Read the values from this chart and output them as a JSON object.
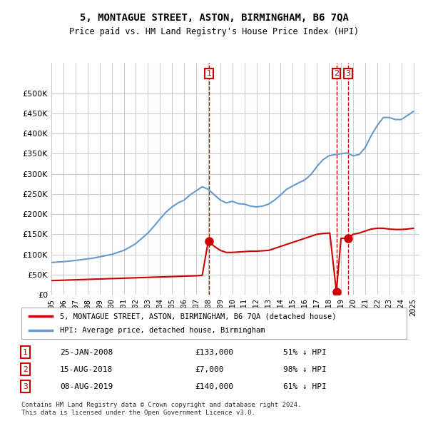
{
  "title": "5, MONTAGUE STREET, ASTON, BIRMINGHAM, B6 7QA",
  "subtitle": "Price paid vs. HM Land Registry's House Price Index (HPI)",
  "background_color": "#ffffff",
  "grid_color": "#cccccc",
  "ylabel_color": "#000000",
  "hpi_line_color": "#6699cc",
  "price_line_color": "#cc0000",
  "annotation_color": "#cc0000",
  "legend_label_price": "5, MONTAGUE STREET, ASTON, BIRMINGHAM, B6 7QA (detached house)",
  "legend_label_hpi": "HPI: Average price, detached house, Birmingham",
  "transactions": [
    {
      "label": "1",
      "date": "25-JAN-2008",
      "price": 133000,
      "pct": "51% ↓ HPI",
      "x": 2008.07
    },
    {
      "label": "2",
      "date": "15-AUG-2018",
      "price": 7000,
      "pct": "98% ↓ HPI",
      "x": 2018.62
    },
    {
      "label": "3",
      "date": "08-AUG-2019",
      "price": 140000,
      "pct": "61% ↓ HPI",
      "x": 2019.6
    }
  ],
  "footer": "Contains HM Land Registry data © Crown copyright and database right 2024.\nThis data is licensed under the Open Government Licence v3.0.",
  "ylim": [
    0,
    575000
  ],
  "yticks": [
    0,
    50000,
    100000,
    150000,
    200000,
    250000,
    300000,
    350000,
    400000,
    450000,
    500000
  ],
  "hpi_x": [
    1995,
    1995.5,
    1996,
    1996.5,
    1997,
    1997.5,
    1998,
    1998.5,
    1999,
    1999.5,
    2000,
    2000.5,
    2001,
    2001.5,
    2002,
    2002.5,
    2003,
    2003.5,
    2004,
    2004.5,
    2005,
    2005.5,
    2006,
    2006.5,
    2007,
    2007.5,
    2008,
    2008.5,
    2009,
    2009.5,
    2010,
    2010.5,
    2011,
    2011.5,
    2012,
    2012.5,
    2013,
    2013.5,
    2014,
    2014.5,
    2015,
    2015.5,
    2016,
    2016.5,
    2017,
    2017.5,
    2018,
    2018.5,
    2019,
    2019.5,
    2020,
    2020.5,
    2021,
    2021.5,
    2022,
    2022.5,
    2023,
    2023.5,
    2024,
    2024.5,
    2025
  ],
  "hpi_y": [
    80000,
    81000,
    82000,
    83500,
    85000,
    87000,
    89000,
    91000,
    94000,
    97000,
    100000,
    105000,
    110000,
    118000,
    127000,
    140000,
    153000,
    170000,
    188000,
    205000,
    218000,
    228000,
    235000,
    248000,
    258000,
    268000,
    262000,
    248000,
    235000,
    228000,
    232000,
    226000,
    225000,
    220000,
    218000,
    220000,
    225000,
    235000,
    248000,
    262000,
    270000,
    278000,
    285000,
    298000,
    318000,
    335000,
    345000,
    348000,
    350000,
    352000,
    345000,
    348000,
    365000,
    395000,
    420000,
    440000,
    440000,
    435000,
    435000,
    445000,
    455000
  ],
  "price_x": [
    1995,
    1995.5,
    1996,
    1996.5,
    1997,
    1997.5,
    1998,
    1998.5,
    1999,
    1999.5,
    2000,
    2000.5,
    2001,
    2001.5,
    2002,
    2002.5,
    2003,
    2003.5,
    2004,
    2004.5,
    2005,
    2005.5,
    2006,
    2006.5,
    2007,
    2007.5,
    2008,
    2008.5,
    2009,
    2009.5,
    2010,
    2010.5,
    2011,
    2011.5,
    2012,
    2012.5,
    2013,
    2013.5,
    2014,
    2014.5,
    2015,
    2015.5,
    2016,
    2016.5,
    2017,
    2017.5,
    2018,
    2018.07,
    2018.62,
    2019,
    2019.6,
    2020,
    2020.5,
    2021,
    2021.5,
    2022,
    2022.5,
    2023,
    2023.5,
    2024,
    2024.5,
    2025
  ],
  "price_y": [
    35000,
    35500,
    36000,
    36500,
    37000,
    37500,
    38000,
    38500,
    39000,
    39500,
    40000,
    40500,
    41000,
    41500,
    42000,
    42500,
    43000,
    43500,
    44000,
    44500,
    45000,
    45500,
    46000,
    46500,
    47000,
    48000,
    133000,
    120000,
    110000,
    105000,
    105000,
    106000,
    107000,
    108000,
    108000,
    109000,
    110000,
    115000,
    120000,
    125000,
    130000,
    135000,
    140000,
    145000,
    150000,
    152000,
    153000,
    153500,
    7000,
    140000,
    140000,
    150000,
    153000,
    158000,
    163000,
    165000,
    165000,
    163000,
    162000,
    162000,
    163000,
    165000
  ],
  "xlim": [
    1995,
    2025.5
  ],
  "xticks": [
    1995,
    1996,
    1997,
    1998,
    1999,
    2000,
    2001,
    2002,
    2003,
    2004,
    2005,
    2006,
    2007,
    2008,
    2009,
    2010,
    2011,
    2012,
    2013,
    2014,
    2015,
    2016,
    2017,
    2018,
    2019,
    2020,
    2021,
    2022,
    2023,
    2024,
    2025
  ]
}
